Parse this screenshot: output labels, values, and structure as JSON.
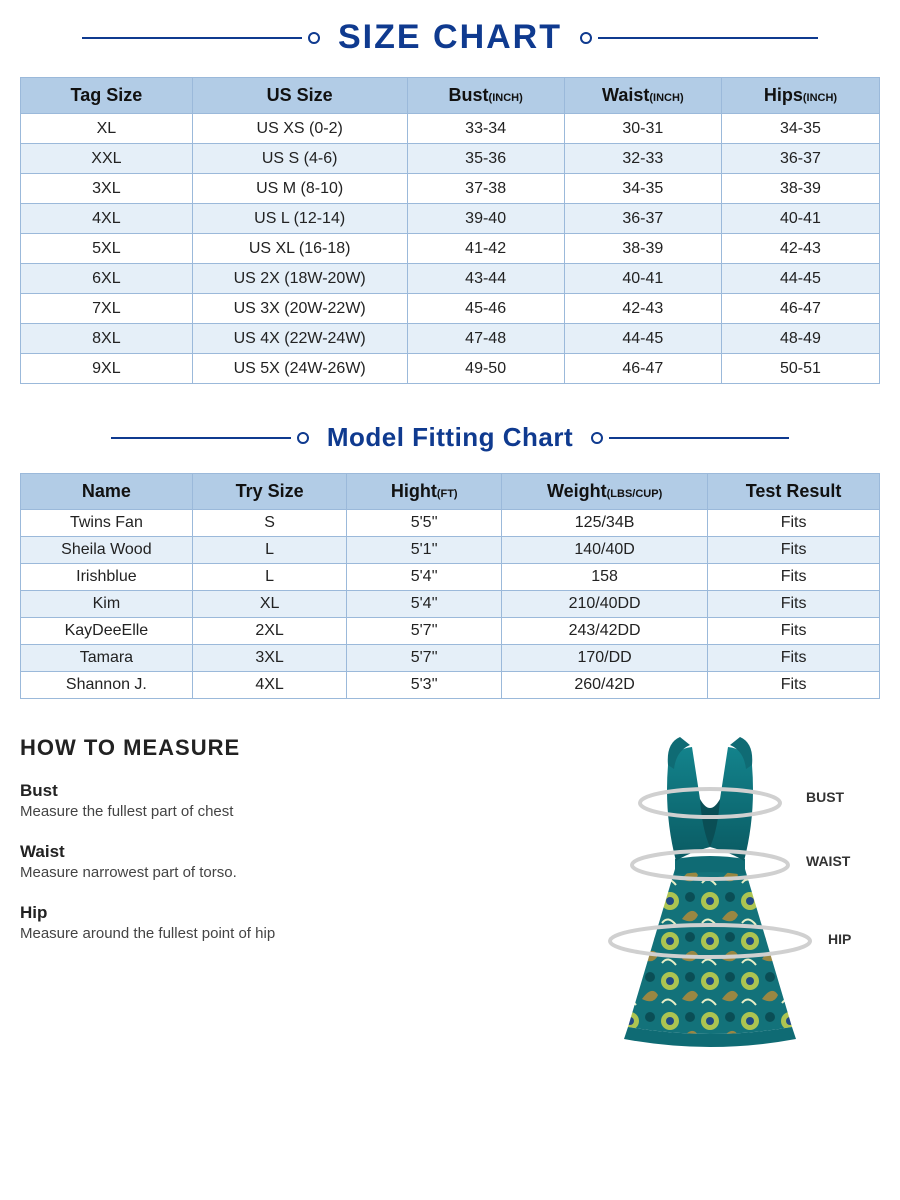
{
  "colors": {
    "title": "#0f3a8f",
    "title_line": "#0f3a8f",
    "title_dot_border": "#0f3a8f",
    "table_border": "#9bb9da",
    "table_header_bg": "#b2cce6",
    "row_even_bg": "#e5eff8",
    "row_odd_bg": "#ffffff",
    "header_text": "#111111",
    "body_text": "#222222",
    "measure_text": "#222222",
    "callout_text": "#333333",
    "dress_top": "#0f6b74",
    "dress_top_dark": "#0a4e55",
    "dress_skirt_1": "#1b8a82",
    "dress_skirt_2": "#c8d24a",
    "dress_skirt_3": "#204a86",
    "dress_skirt_4": "#a88a3c",
    "dress_hem": "#0f6b74",
    "ellipse_stroke": "#d0d0d0"
  },
  "layout": {
    "title_fontsize_main": 34,
    "title_fontsize_sub": 26,
    "table_header_height": 36,
    "table_row_height_size": 30,
    "table_row_height_fit": 27,
    "size_col_widths_pct": [
      20,
      25,
      18.3,
      18.3,
      18.4
    ],
    "fit_col_widths_pct": [
      20,
      18,
      18,
      24,
      20
    ]
  },
  "size_title": "SIZE CHART",
  "fit_title": "Model Fitting Chart",
  "size_table": {
    "columns": [
      {
        "label": "Tag Size",
        "unit": ""
      },
      {
        "label": "US Size",
        "unit": ""
      },
      {
        "label": "Bust",
        "unit": "(INCH)"
      },
      {
        "label": "Waist",
        "unit": "(INCH)"
      },
      {
        "label": "Hips",
        "unit": "(INCH)"
      }
    ],
    "rows": [
      [
        "XL",
        "US XS (0-2)",
        "33-34",
        "30-31",
        "34-35"
      ],
      [
        "XXL",
        "US S (4-6)",
        "35-36",
        "32-33",
        "36-37"
      ],
      [
        "3XL",
        "US M (8-10)",
        "37-38",
        "34-35",
        "38-39"
      ],
      [
        "4XL",
        "US L (12-14)",
        "39-40",
        "36-37",
        "40-41"
      ],
      [
        "5XL",
        "US XL (16-18)",
        "41-42",
        "38-39",
        "42-43"
      ],
      [
        "6XL",
        "US 2X (18W-20W)",
        "43-44",
        "40-41",
        "44-45"
      ],
      [
        "7XL",
        "US 3X (20W-22W)",
        "45-46",
        "42-43",
        "46-47"
      ],
      [
        "8XL",
        "US 4X (22W-24W)",
        "47-48",
        "44-45",
        "48-49"
      ],
      [
        "9XL",
        "US 5X (24W-26W)",
        "49-50",
        "46-47",
        "50-51"
      ]
    ]
  },
  "fit_table": {
    "columns": [
      {
        "label": "Name",
        "unit": ""
      },
      {
        "label": "Try Size",
        "unit": ""
      },
      {
        "label": "Hight",
        "unit": "(FT)"
      },
      {
        "label": "Weight",
        "unit": "(LBS/CUP)"
      },
      {
        "label": "Test Result",
        "unit": ""
      }
    ],
    "rows": [
      [
        "Twins Fan",
        "S",
        "5'5''",
        "125/34B",
        "Fits"
      ],
      [
        "Sheila Wood",
        "L",
        "5'1''",
        "140/40D",
        "Fits"
      ],
      [
        "Irishblue",
        "L",
        "5'4''",
        "158",
        "Fits"
      ],
      [
        "Kim",
        "XL",
        "5'4''",
        "210/40DD",
        "Fits"
      ],
      [
        "KayDeeElle",
        "2XL",
        "5'7''",
        "243/42DD",
        "Fits"
      ],
      [
        "Tamara",
        "3XL",
        "5'7''",
        "170/DD",
        "Fits"
      ],
      [
        "Shannon J.",
        "4XL",
        "5'3''",
        "260/42D",
        "Fits"
      ]
    ]
  },
  "measure": {
    "heading": "HOW TO MEASURE",
    "items": [
      {
        "label": "Bust",
        "desc": "Measure the fullest part of chest"
      },
      {
        "label": "Waist",
        "desc": "Measure narrowest part of torso."
      },
      {
        "label": "Hip",
        "desc": "Measure around the fullest point of hip"
      }
    ]
  },
  "callouts": {
    "bust": "BUST",
    "waist": "WAIST",
    "hip": "HIP"
  }
}
